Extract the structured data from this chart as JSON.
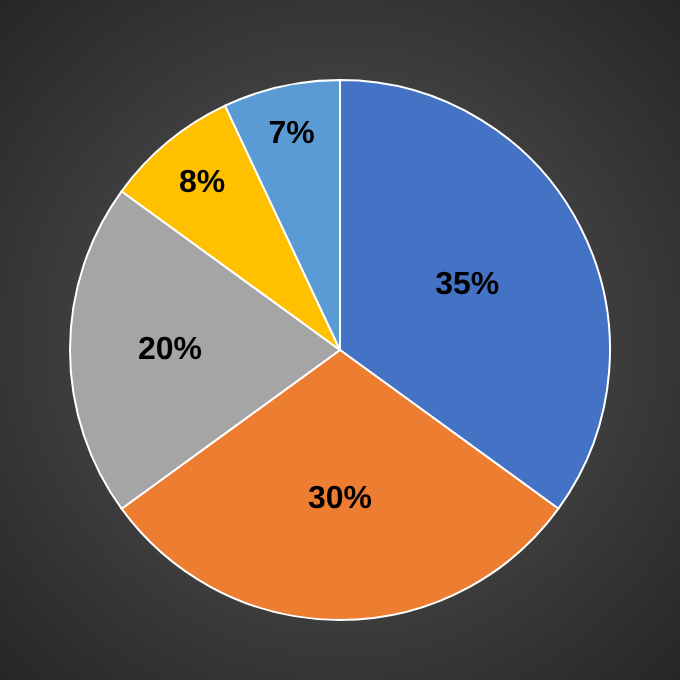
{
  "chart_data": {
    "type": "pie",
    "categories": [
      null,
      null,
      null,
      null,
      null
    ],
    "values": [
      35,
      30,
      20,
      8,
      7
    ],
    "colors": [
      "#4472c4",
      "#ed7d31",
      "#a5a5a5",
      "#ffc000",
      "#5b9bd5"
    ],
    "value_labels": [
      "35%",
      "30%",
      "20%",
      "8%",
      "7%"
    ],
    "legend": false
  }
}
